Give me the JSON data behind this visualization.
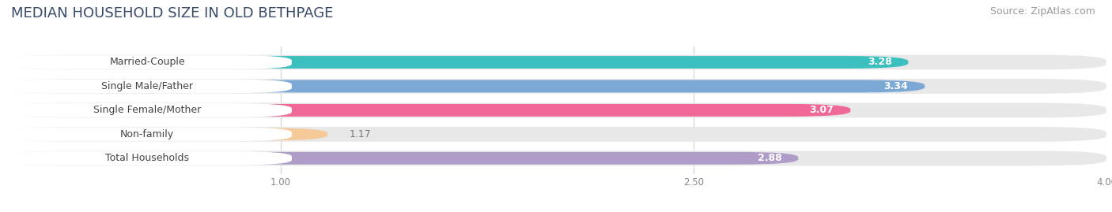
{
  "title": "MEDIAN HOUSEHOLD SIZE IN OLD BETHPAGE",
  "source": "Source: ZipAtlas.com",
  "categories": [
    "Married-Couple",
    "Single Male/Father",
    "Single Female/Mother",
    "Non-family",
    "Total Households"
  ],
  "values": [
    3.28,
    3.34,
    3.07,
    1.17,
    2.88
  ],
  "bar_colors": [
    "#3bbfbf",
    "#7ba8d4",
    "#f06898",
    "#f5c99a",
    "#b09cc8"
  ],
  "label_bg_color": "#ffffff",
  "bar_track_color": "#e8e8e8",
  "xlim": [
    0.0,
    4.0
  ],
  "xticks": [
    1.0,
    2.5,
    4.0
  ],
  "title_fontsize": 13,
  "source_fontsize": 9,
  "label_fontsize": 9,
  "value_fontsize": 9,
  "background_color": "#ffffff",
  "title_color": "#3a4a6b",
  "label_text_color": "#444444",
  "value_text_color_inside": "#ffffff",
  "value_text_color_outside": "#777777",
  "tick_color": "#888888",
  "grid_color": "#d0d0d0"
}
